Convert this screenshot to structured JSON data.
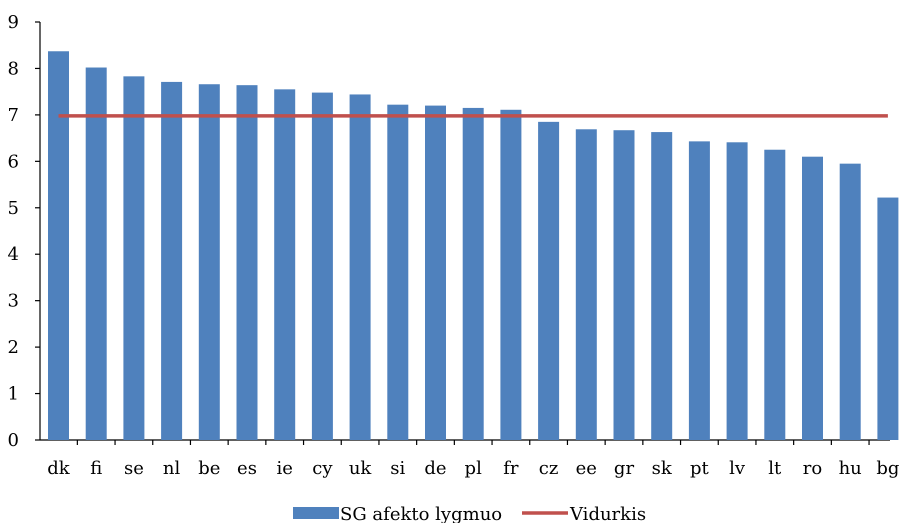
{
  "chart_data": {
    "type": "bar",
    "categories": [
      "dk",
      "fi",
      "se",
      "nl",
      "be",
      "es",
      "ie",
      "cy",
      "uk",
      "si",
      "de",
      "pl",
      "fr",
      "cz",
      "ee",
      "gr",
      "sk",
      "pt",
      "lv",
      "lt",
      "ro",
      "hu",
      "bg"
    ],
    "series": [
      {
        "name": "SG afekto lygmuo",
        "type": "bar",
        "color": "#4f81bd",
        "values": [
          8.37,
          8.02,
          7.83,
          7.71,
          7.66,
          7.64,
          7.55,
          7.48,
          7.44,
          7.22,
          7.2,
          7.15,
          7.11,
          6.85,
          6.69,
          6.67,
          6.63,
          6.43,
          6.41,
          6.25,
          6.1,
          5.95,
          5.22
        ]
      },
      {
        "name": "Vidurkis",
        "type": "line",
        "color": "#c0504d",
        "value": 6.98
      }
    ],
    "yticks": [
      "0",
      "1",
      "2",
      "3",
      "4",
      "5",
      "6",
      "7",
      "8",
      "9"
    ],
    "ylim": [
      0,
      9
    ],
    "title": "",
    "xlabel": "",
    "ylabel": "",
    "grid": false,
    "legend": "bottom-center"
  }
}
